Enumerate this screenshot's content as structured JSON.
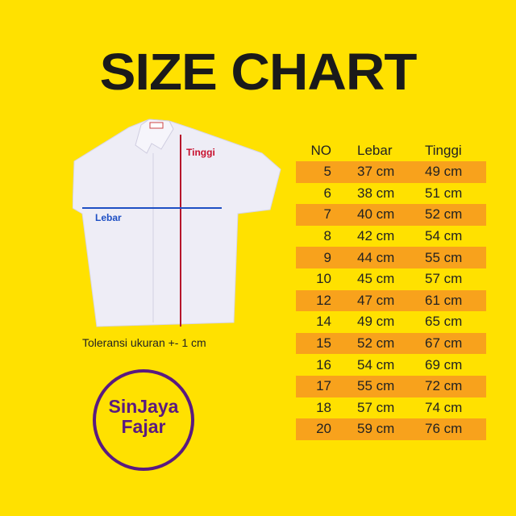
{
  "title": "SIZE CHART",
  "shirt": {
    "height_label": "Tinggi",
    "width_label": "Lebar",
    "height_color": "#b5152b",
    "width_color": "#1e4fc4"
  },
  "note": "Toleransi ukuran +- 1 cm",
  "logo": {
    "text_line1": "SinJaya",
    "text_line2": "Fajar",
    "color": "#5a1a80"
  },
  "table": {
    "headers": [
      "NO",
      "Lebar",
      "Tinggi"
    ],
    "band_color": "#f8a21c",
    "rows": [
      {
        "no": "5",
        "lebar": "37 cm",
        "tinggi": "49 cm"
      },
      {
        "no": "6",
        "lebar": "38 cm",
        "tinggi": "51 cm"
      },
      {
        "no": "7",
        "lebar": "40 cm",
        "tinggi": "52 cm"
      },
      {
        "no": "8",
        "lebar": "42 cm",
        "tinggi": "54 cm"
      },
      {
        "no": "9",
        "lebar": "44 cm",
        "tinggi": "55 cm"
      },
      {
        "no": "10",
        "lebar": "45 cm",
        "tinggi": "57 cm"
      },
      {
        "no": "12",
        "lebar": "47 cm",
        "tinggi": "61 cm"
      },
      {
        "no": "14",
        "lebar": "49 cm",
        "tinggi": "65 cm"
      },
      {
        "no": "15",
        "lebar": "52 cm",
        "tinggi": "67 cm"
      },
      {
        "no": "16",
        "lebar": "54 cm",
        "tinggi": "69 cm"
      },
      {
        "no": "17",
        "lebar": "55 cm",
        "tinggi": "72 cm"
      },
      {
        "no": "18",
        "lebar": "57 cm",
        "tinggi": "74 cm"
      },
      {
        "no": "20",
        "lebar": "59 cm",
        "tinggi": "76 cm"
      }
    ]
  }
}
